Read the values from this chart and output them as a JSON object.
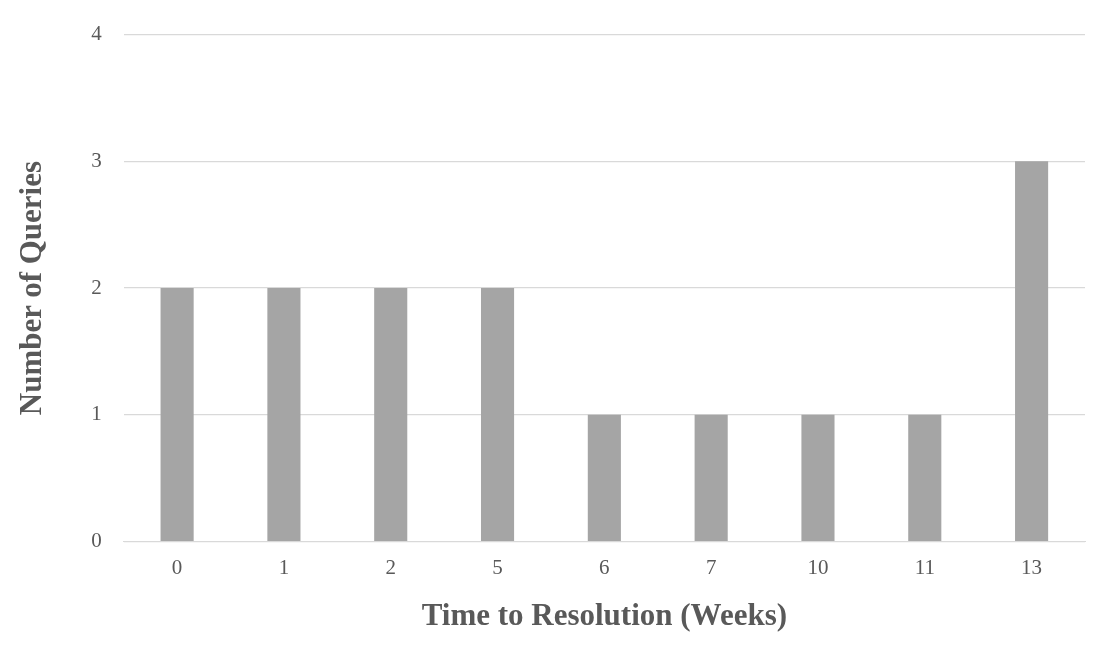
{
  "chart_data": {
    "type": "bar",
    "xlabel": "Time to Resolution (Weeks)",
    "ylabel": "Number of Queries",
    "categories": [
      "0",
      "1",
      "2",
      "5",
      "6",
      "7",
      "10",
      "11",
      "13"
    ],
    "values": [
      2,
      2,
      2,
      2,
      1,
      1,
      1,
      1,
      3
    ],
    "color": "#a5a5a5",
    "ylim": [
      0,
      4
    ],
    "yticks": [
      0,
      1,
      2,
      3,
      4
    ],
    "grid": "y",
    "legend": false
  }
}
